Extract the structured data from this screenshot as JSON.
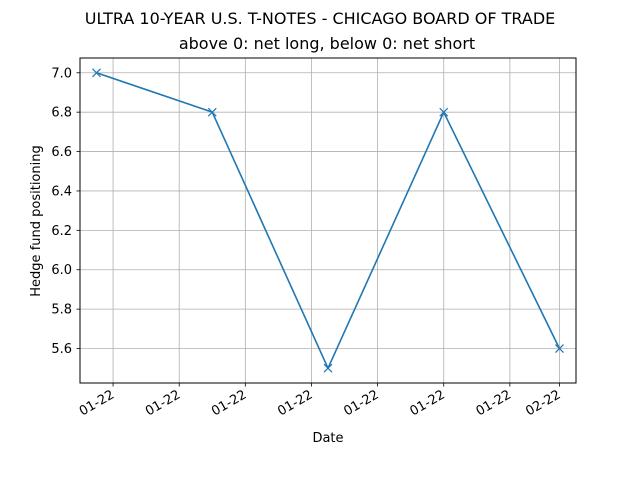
{
  "chart_data": {
    "type": "line",
    "title": "ULTRA 10-YEAR U.S. T-NOTES - CHICAGO BOARD OF TRADE",
    "subtitle": "above 0: net long, below 0: net short",
    "xlabel": "Date",
    "ylabel": "Hedge fund positioning",
    "x": [
      "2022-01-04",
      "2022-01-11",
      "2022-01-18",
      "2022-01-25",
      "2022-02-01"
    ],
    "x_ticks": [
      {
        "date": "2022-01-05",
        "label": "01-22"
      },
      {
        "date": "2022-01-09",
        "label": "01-22"
      },
      {
        "date": "2022-01-13",
        "label": "01-22"
      },
      {
        "date": "2022-01-17",
        "label": "01-22"
      },
      {
        "date": "2022-01-21",
        "label": "01-22"
      },
      {
        "date": "2022-01-25",
        "label": "01-22"
      },
      {
        "date": "2022-01-29",
        "label": "01-22"
      },
      {
        "date": "2022-02-01",
        "label": "02-22"
      }
    ],
    "x_range": [
      "2022-01-03",
      "2022-02-02"
    ],
    "series": [
      {
        "values": [
          7.0,
          6.8,
          5.5,
          6.8,
          5.6
        ],
        "color": "#1f77b4",
        "marker": "x"
      }
    ],
    "y_ticks": [
      5.6,
      5.8,
      6.0,
      6.2,
      6.4,
      6.6,
      6.8,
      7.0
    ],
    "y_tick_labels": [
      "5.6",
      "5.8",
      "6.0",
      "6.2",
      "6.4",
      "6.6",
      "6.8",
      "7.0"
    ],
    "ylim": [
      5.425,
      7.075
    ],
    "grid": true,
    "legend": "none"
  }
}
